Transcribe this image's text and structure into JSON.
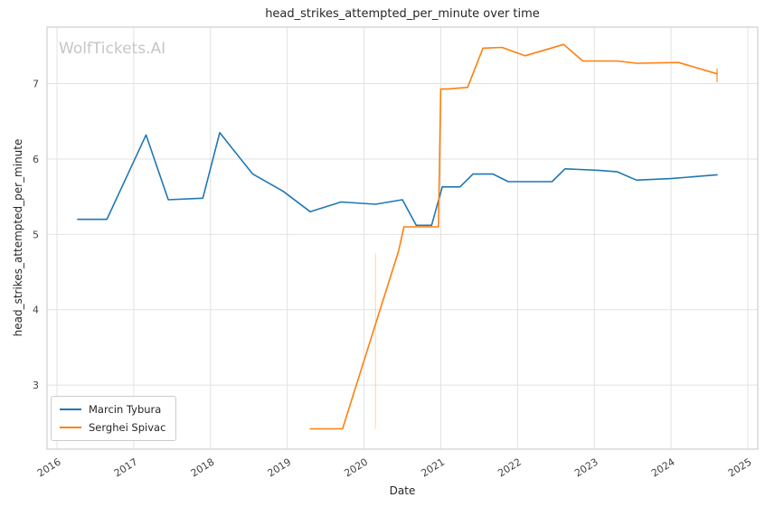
{
  "watermark": "WolfTickets.AI",
  "chart_data": {
    "type": "line",
    "title": "head_strikes_attempted_per_minute over time",
    "xlabel": "Date",
    "ylabel": "head_strikes_attempted_per_minute",
    "xlim": [
      2015.87,
      2025.13
    ],
    "ylim": [
      2.15,
      7.75
    ],
    "xticks": [
      2016,
      2017,
      2018,
      2019,
      2020,
      2021,
      2022,
      2023,
      2024,
      2025
    ],
    "yticks": [
      3,
      4,
      5,
      6,
      7
    ],
    "grid": true,
    "grid_color": "#e2e2e2",
    "border_color": "#cfcfcf",
    "background": "#ffffff",
    "legend_position": "lower-left",
    "series": [
      {
        "name": "Marcin Tybura",
        "color": "#1f77b4",
        "x": [
          2016.27,
          2016.65,
          2017.16,
          2017.45,
          2017.9,
          2018.12,
          2018.55,
          2018.95,
          2019.3,
          2019.7,
          2020.15,
          2020.5,
          2020.68,
          2020.88,
          2021.02,
          2021.25,
          2021.42,
          2021.68,
          2021.88,
          2022.45,
          2022.62,
          2023.05,
          2023.3,
          2023.55,
          2024.0,
          2024.6
        ],
        "y": [
          5.2,
          5.2,
          6.32,
          5.46,
          5.48,
          6.35,
          5.8,
          5.57,
          5.3,
          5.43,
          5.4,
          5.46,
          5.12,
          5.12,
          5.63,
          5.63,
          5.8,
          5.8,
          5.7,
          5.7,
          5.87,
          5.85,
          5.83,
          5.72,
          5.74,
          5.79
        ]
      },
      {
        "name": "Serghei Spivac",
        "color": "#ff7f0e",
        "x": [
          2019.3,
          2019.72,
          2020.45,
          2020.52,
          2020.97,
          2021.0,
          2021.1,
          2021.35,
          2021.55,
          2021.8,
          2022.1,
          2022.6,
          2022.85,
          2023.3,
          2023.55,
          2024.1,
          2024.6
        ],
        "y": [
          2.42,
          2.42,
          4.78,
          5.1,
          5.1,
          6.93,
          6.93,
          6.95,
          7.47,
          7.48,
          7.37,
          7.52,
          7.3,
          7.3,
          7.27,
          7.28,
          7.13
        ]
      }
    ],
    "error_bars": [
      {
        "x": 2020.15,
        "y_low": 2.42,
        "y_high": 4.75,
        "color": "#ffb97a",
        "opacity": 0.55
      },
      {
        "x": 2024.6,
        "y_low": 7.02,
        "y_high": 7.2,
        "color": "#ff7f0e",
        "opacity": 0.9
      }
    ]
  }
}
